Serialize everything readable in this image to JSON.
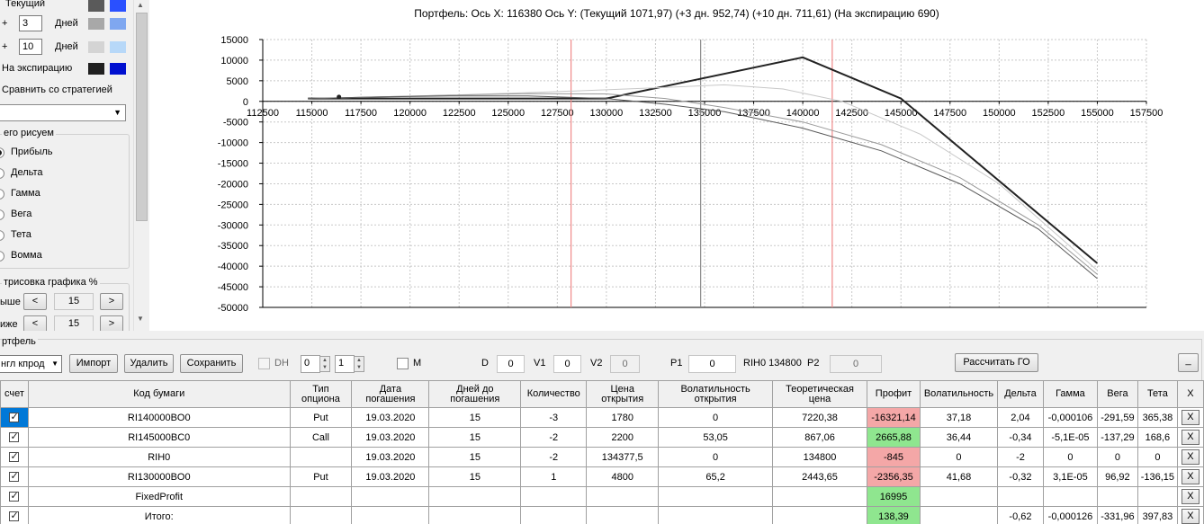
{
  "left_panel": {
    "rows": [
      {
        "prefix": "",
        "value": "",
        "label": "Текущий",
        "colors": [
          "#5a5a5a",
          "#2a50ff"
        ]
      },
      {
        "prefix": "+",
        "value": "3",
        "label": "Дней",
        "colors": [
          "#a8a8a8",
          "#7fa7f0"
        ]
      },
      {
        "prefix": "+",
        "value": "10",
        "label": "Дней",
        "colors": [
          "#d4d4d4",
          "#b7d8f8"
        ]
      },
      {
        "prefix": "",
        "value": "",
        "label": "На экспирацию",
        "colors": [
          "#202020",
          "#0010d0"
        ]
      }
    ],
    "compare_label": "Сравнить со стратегией",
    "draw_group_title": "его рисуем",
    "draw_options": [
      "Прибыль",
      "Дельта",
      "Гамма",
      "Вега",
      "Тета",
      "Вомма"
    ],
    "selected_option": "Прибыль",
    "range_group_title": "трисовка графика %",
    "range_rows": [
      {
        "label": "ыше",
        "value": "15"
      },
      {
        "label": "иже",
        "value": "15"
      }
    ],
    "dec_label": "<",
    "inc_label": ">"
  },
  "chart": {
    "title": "Портфель: Ось X:  116380 Ось Y:  (Текущий 1071,97)  (+3 дн. 952,74)  (+10 дн. 711,61)  (На экспирацию 690)"
  },
  "chart_data": {
    "type": "line",
    "xlim": [
      112500,
      157500
    ],
    "ylim": [
      -50000,
      15000
    ],
    "x_ticks": [
      112500,
      115000,
      117500,
      120000,
      122500,
      125000,
      127500,
      130000,
      132500,
      135000,
      137500,
      140000,
      142500,
      145000,
      147500,
      150000,
      152500,
      155000,
      157500
    ],
    "y_ticks": [
      15000,
      10000,
      5000,
      0,
      -5000,
      -10000,
      -15000,
      -20000,
      -25000,
      -30000,
      -35000,
      -40000,
      -45000,
      -50000
    ],
    "grid": true,
    "vertical_lines": [
      {
        "x": 128200,
        "color": "#f08a8a"
      },
      {
        "x": 134800,
        "color": "#8a8a8a"
      },
      {
        "x": 141500,
        "color": "#f08a8a"
      }
    ],
    "marker": {
      "x": 116380,
      "y": 1072
    },
    "series": [
      {
        "color": "#222222",
        "width": 2,
        "points": [
          [
            114800,
            690
          ],
          [
            116400,
            690
          ],
          [
            130000,
            690
          ],
          [
            140000,
            10690
          ],
          [
            145000,
            690
          ],
          [
            155000,
            -39300
          ]
        ]
      },
      {
        "color": "#c8c8c8",
        "width": 1,
        "points": [
          [
            114800,
            700
          ],
          [
            118000,
            1050
          ],
          [
            122000,
            1500
          ],
          [
            126000,
            2100
          ],
          [
            130000,
            2800
          ],
          [
            133000,
            3400
          ],
          [
            136000,
            4000
          ],
          [
            139000,
            3000
          ],
          [
            142000,
            0
          ],
          [
            146000,
            -8000
          ],
          [
            150000,
            -20000
          ],
          [
            155000,
            -41000
          ]
        ]
      },
      {
        "color": "#9a9a9a",
        "width": 1,
        "points": [
          [
            114800,
            700
          ],
          [
            118000,
            1050
          ],
          [
            122000,
            1500
          ],
          [
            126000,
            1900
          ],
          [
            130000,
            1800
          ],
          [
            133000,
            700
          ],
          [
            136000,
            -1500
          ],
          [
            140000,
            -5000
          ],
          [
            144000,
            -10500
          ],
          [
            148000,
            -18500
          ],
          [
            152000,
            -30000
          ],
          [
            155000,
            -42000
          ]
        ]
      },
      {
        "color": "#585858",
        "width": 1,
        "points": [
          [
            114800,
            700
          ],
          [
            118000,
            1050
          ],
          [
            122000,
            1300
          ],
          [
            126000,
            1300
          ],
          [
            130000,
            700
          ],
          [
            133000,
            -700
          ],
          [
            136000,
            -2500
          ],
          [
            140000,
            -6500
          ],
          [
            144000,
            -12000
          ],
          [
            148000,
            -20000
          ],
          [
            152000,
            -31000
          ],
          [
            155000,
            -43000
          ]
        ]
      }
    ]
  },
  "portfolio": {
    "section_label": "ртфель",
    "combo_value": "нгл кпрод",
    "import_label": "Импорт",
    "delete_label": "Удалить",
    "save_label": "Сохранить",
    "dh_label": "DH",
    "spin1": "0",
    "spin2": "1",
    "m_label": "M",
    "d_label": "D",
    "d_value": "0",
    "v1_label": "V1",
    "v1_value": "0",
    "v2_label": "V2",
    "v2_value": "0",
    "p1_label": "P1",
    "p1_value": "0",
    "rih_label": "RIH0 134800",
    "p2_label": "P2",
    "p2_value": "0",
    "calc_label": "Рассчитать ГО",
    "minimize_label": "_"
  },
  "grid": {
    "headers": [
      "счет",
      "Код бумаги",
      "Тип опциона",
      "Дата погашения",
      "Дней до погашения",
      "Количество",
      "Цена открытия",
      "Волатильность открытия",
      "Теоретическая цена",
      "Профит",
      "Волатильность",
      "Дельта",
      "Гамма",
      "Вега",
      "Тета",
      "X"
    ],
    "rows": [
      {
        "cells": [
          "RI140000BO0",
          "Put",
          "19.03.2020",
          "15",
          "-3",
          "1780",
          "0",
          "7220,38",
          "-16321,14",
          "37,18",
          "2,04",
          "-0,000106",
          "-291,59",
          "365,38"
        ],
        "profit_state": "neg",
        "x": "X"
      },
      {
        "cells": [
          "RI145000BC0",
          "Call",
          "19.03.2020",
          "15",
          "-2",
          "2200",
          "53,05",
          "867,06",
          "2665,88",
          "36,44",
          "-0,34",
          "-5,1E-05",
          "-137,29",
          "168,6"
        ],
        "profit_state": "pos",
        "x": "X"
      },
      {
        "cells": [
          "RIH0",
          "",
          "19.03.2020",
          "15",
          "-2",
          "134377,5",
          "0",
          "134800",
          "-845",
          "0",
          "-2",
          "0",
          "0",
          "0"
        ],
        "profit_state": "neg",
        "x": "X"
      },
      {
        "cells": [
          "RI130000BO0",
          "Put",
          "19.03.2020",
          "15",
          "1",
          "4800",
          "65,2",
          "2443,65",
          "-2356,35",
          "41,68",
          "-0,32",
          "3,1E-05",
          "96,92",
          "-136,15"
        ],
        "profit_state": "neg",
        "x": "X"
      },
      {
        "cells": [
          "FixedProfit",
          "",
          "",
          "",
          "",
          "",
          "",
          "",
          "16995",
          "",
          "",
          "",
          "",
          ""
        ],
        "profit_state": "pos",
        "x": "X"
      },
      {
        "cells": [
          "Итого:",
          "",
          "",
          "",
          "",
          "",
          "",
          "",
          "138,39",
          "",
          "-0,62",
          "-0,000126",
          "-331,96",
          "397,83"
        ],
        "profit_state": "pos",
        "x": "X"
      }
    ]
  }
}
